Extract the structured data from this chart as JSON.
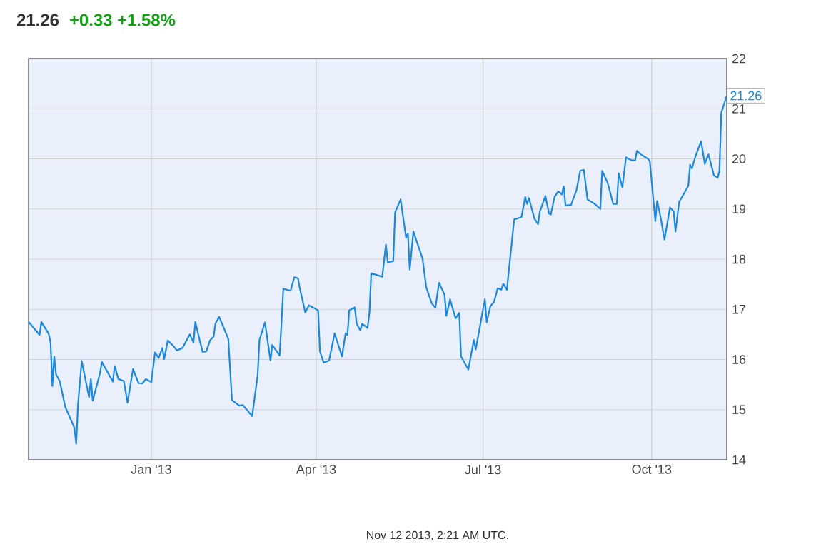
{
  "chart_data": {
    "type": "line",
    "title": "21.26",
    "subtitle": "+0.33 +1.58%",
    "annotations": [
      {
        "text": "21.26",
        "x": "2013-11-11",
        "y": 21.26
      },
      "Nov 12 2013, 2:21 AM UTC."
    ],
    "x": [
      "2012-10-26",
      "2012-11-01",
      "2012-11-02",
      "2012-11-06",
      "2012-11-07",
      "2012-11-08",
      "2012-11-09",
      "2012-11-10",
      "2012-11-12",
      "2012-11-15",
      "2012-11-16",
      "2012-11-20",
      "2012-11-21",
      "2012-11-22",
      "2012-11-24",
      "2012-11-28",
      "2012-11-29",
      "2012-11-30",
      "2012-12-04",
      "2012-12-05",
      "2012-12-11",
      "2012-12-12",
      "2012-12-14",
      "2012-12-17",
      "2012-12-19",
      "2012-12-22",
      "2012-12-25",
      "2012-12-27",
      "2012-12-29",
      "2013-01-01",
      "2013-01-03",
      "2013-01-05",
      "2013-01-07",
      "2013-01-08",
      "2013-01-10",
      "2013-01-13",
      "2013-01-15",
      "2013-01-18",
      "2013-01-22",
      "2013-01-24",
      "2013-01-25",
      "2013-01-27",
      "2013-01-29",
      "2013-01-31",
      "2013-02-02",
      "2013-02-04",
      "2013-02-05",
      "2013-02-07",
      "2013-02-12",
      "2013-02-14",
      "2013-02-18",
      "2013-02-20",
      "2013-02-25",
      "2013-02-28",
      "2013-03-01",
      "2013-03-04",
      "2013-03-07",
      "2013-03-08",
      "2013-03-12",
      "2013-03-13",
      "2013-03-14",
      "2013-03-18",
      "2013-03-20",
      "2013-03-22",
      "2013-03-23",
      "2013-03-26",
      "2013-03-28",
      "2013-04-02",
      "2013-04-03",
      "2013-04-05",
      "2013-04-08",
      "2013-04-11",
      "2013-04-15",
      "2013-04-17",
      "2013-04-18",
      "2013-04-19",
      "2013-04-22",
      "2013-04-23",
      "2013-04-25",
      "2013-04-26",
      "2013-04-29",
      "2013-04-30",
      "2013-05-01",
      "2013-05-07",
      "2013-05-09",
      "2013-05-10",
      "2013-05-13",
      "2013-05-14",
      "2013-05-17",
      "2013-05-20",
      "2013-05-21",
      "2013-05-22",
      "2013-05-24",
      "2013-05-29",
      "2013-05-31",
      "2013-06-03",
      "2013-06-05",
      "2013-06-07",
      "2013-06-10",
      "2013-06-11",
      "2013-06-13",
      "2013-06-16",
      "2013-06-18",
      "2013-06-19",
      "2013-06-23",
      "2013-06-26",
      "2013-06-27",
      "2013-07-02",
      "2013-07-03",
      "2013-07-05",
      "2013-07-07",
      "2013-07-09",
      "2013-07-11",
      "2013-07-12",
      "2013-07-14",
      "2013-07-16",
      "2013-07-18",
      "2013-07-22",
      "2013-07-24",
      "2013-07-25",
      "2013-07-26",
      "2013-07-29",
      "2013-07-31",
      "2013-08-01",
      "2013-08-04",
      "2013-08-06",
      "2013-08-07",
      "2013-08-09",
      "2013-08-11",
      "2013-08-13",
      "2013-08-14",
      "2013-08-15",
      "2013-08-18",
      "2013-08-21",
      "2013-08-23",
      "2013-08-25",
      "2013-08-27",
      "2013-08-31",
      "2013-09-03",
      "2013-09-04",
      "2013-09-07",
      "2013-09-10",
      "2013-09-12",
      "2013-09-13",
      "2013-09-15",
      "2013-09-17",
      "2013-09-20",
      "2013-09-22",
      "2013-09-23",
      "2013-09-25",
      "2013-09-29",
      "2013-09-30",
      "2013-10-03",
      "2013-10-04",
      "2013-10-06",
      "2013-10-08",
      "2013-10-11",
      "2013-10-13",
      "2013-10-14",
      "2013-10-16",
      "2013-10-21",
      "2013-10-22",
      "2013-10-23",
      "2013-10-25",
      "2013-10-28",
      "2013-10-30",
      "2013-11-01",
      "2013-11-04",
      "2013-11-06",
      "2013-11-07",
      "2013-11-08",
      "2013-11-11"
    ],
    "series": [
      {
        "color": "#1a87e0",
        "values": [
          16.75,
          16.49,
          16.75,
          16.51,
          16.34,
          15.47,
          16.06,
          15.7,
          15.57,
          15.06,
          14.97,
          14.64,
          14.32,
          15.11,
          15.97,
          15.25,
          15.61,
          15.18,
          15.73,
          15.95,
          15.56,
          15.87,
          15.61,
          15.57,
          15.14,
          15.81,
          15.53,
          15.52,
          15.61,
          15.55,
          16.14,
          16.03,
          16.23,
          16.01,
          16.38,
          16.27,
          16.18,
          16.23,
          16.5,
          16.34,
          16.75,
          16.44,
          16.15,
          16.16,
          16.38,
          16.46,
          16.72,
          16.85,
          16.41,
          15.19,
          15.08,
          15.09,
          14.87,
          15.68,
          16.39,
          16.74,
          15.98,
          16.29,
          16.08,
          16.72,
          17.41,
          17.37,
          17.64,
          17.62,
          17.42,
          16.94,
          17.08,
          16.98,
          16.16,
          15.94,
          15.98,
          16.52,
          16.06,
          16.52,
          16.49,
          16.98,
          17.04,
          16.72,
          16.58,
          16.71,
          16.63,
          16.93,
          17.72,
          17.65,
          18.29,
          17.94,
          17.96,
          18.93,
          19.19,
          18.43,
          18.51,
          17.79,
          18.55,
          18.01,
          17.44,
          17.12,
          17.03,
          17.53,
          17.29,
          16.87,
          17.2,
          16.82,
          16.93,
          16.06,
          15.8,
          16.39,
          16.2,
          17.2,
          16.74,
          17.06,
          17.15,
          17.42,
          17.39,
          17.51,
          17.39,
          18.1,
          18.79,
          18.84,
          19.24,
          19.1,
          19.22,
          18.81,
          18.7,
          18.95,
          19.26,
          18.91,
          18.89,
          19.24,
          19.35,
          19.29,
          19.45,
          19.07,
          19.08,
          19.38,
          19.76,
          19.78,
          19.19,
          19.1,
          19.0,
          19.76,
          19.52,
          19.1,
          19.1,
          19.71,
          19.43,
          20.03,
          19.97,
          19.97,
          20.16,
          20.09,
          20.0,
          19.95,
          18.76,
          19.16,
          18.81,
          18.39,
          19.03,
          18.95,
          18.55,
          19.14,
          19.46,
          19.88,
          19.81,
          20.06,
          20.35,
          19.9,
          20.09,
          19.67,
          19.62,
          19.76,
          20.92,
          21.26
        ]
      }
    ],
    "xlim": [
      "2012-10-26",
      "2013-11-11"
    ],
    "xticks": [
      {
        "value": "2013-01-01",
        "label": "Jan '13"
      },
      {
        "value": "2013-04-01",
        "label": "Apr '13"
      },
      {
        "value": "2013-07-01",
        "label": "Jul '13"
      },
      {
        "value": "2013-10-01",
        "label": "Oct '13"
      }
    ],
    "ylim": [
      14,
      22
    ],
    "yticks": [
      14,
      15,
      16,
      17,
      18,
      19,
      20,
      21,
      22
    ],
    "grid": true
  }
}
